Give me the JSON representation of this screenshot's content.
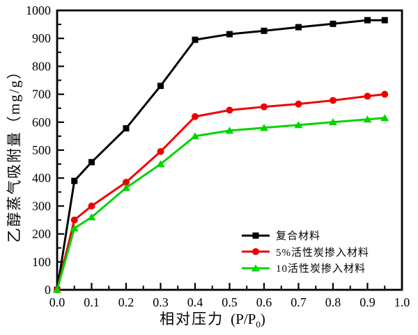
{
  "chart_data": {
    "type": "line",
    "title": "",
    "xlabel": "相对压力 (P/P0)",
    "ylabel": "乙醇蒸气吸附量（mg/g）",
    "xlabel_parts": {
      "main": "相对压力",
      "pre": "(P/P",
      "sub": "0",
      "post": ")"
    },
    "xlim": [
      0.0,
      1.0
    ],
    "ylim": [
      0,
      1000
    ],
    "grid": false,
    "legend_position": "inside bottom-right",
    "frame": "full-box, ticks pointing inward, minor ticks at half-intervals",
    "x_ticks": {
      "values": [
        0,
        0.1,
        0.2,
        0.3,
        0.4,
        0.5,
        0.6,
        0.7,
        0.8,
        0.9,
        1.0
      ],
      "labels": [
        "0.0",
        "0.1",
        "0.2",
        "0.3",
        "0.4",
        "0.5",
        "0.6",
        "0.7",
        "0.8",
        "0.9",
        "1.0"
      ]
    },
    "y_ticks": {
      "values": [
        0,
        100,
        200,
        300,
        400,
        500,
        600,
        700,
        800,
        900,
        1000
      ],
      "labels": [
        "0",
        "100",
        "200",
        "300",
        "400",
        "500",
        "600",
        "700",
        "800",
        "900",
        "1000"
      ]
    },
    "x": [
      0,
      0.05,
      0.1,
      0.2,
      0.3,
      0.4,
      0.5,
      0.6,
      0.7,
      0.8,
      0.9,
      0.95
    ],
    "series": [
      {
        "name": "复合材料",
        "color": "#000000",
        "marker": "square",
        "values": [
          0,
          390,
          457,
          578,
          730,
          895,
          915,
          927,
          940,
          952,
          965,
          965
        ]
      },
      {
        "name": "5%活性炭掺入材料",
        "color": "#ee0000",
        "marker": "circle",
        "values": [
          0,
          250,
          300,
          385,
          495,
          620,
          643,
          655,
          665,
          678,
          693,
          700
        ]
      },
      {
        "name": "10活性炭掺入材料",
        "color": "#00d400",
        "marker": "triangle",
        "values": [
          0,
          220,
          260,
          365,
          450,
          550,
          570,
          580,
          590,
          600,
          610,
          615
        ]
      }
    ]
  }
}
